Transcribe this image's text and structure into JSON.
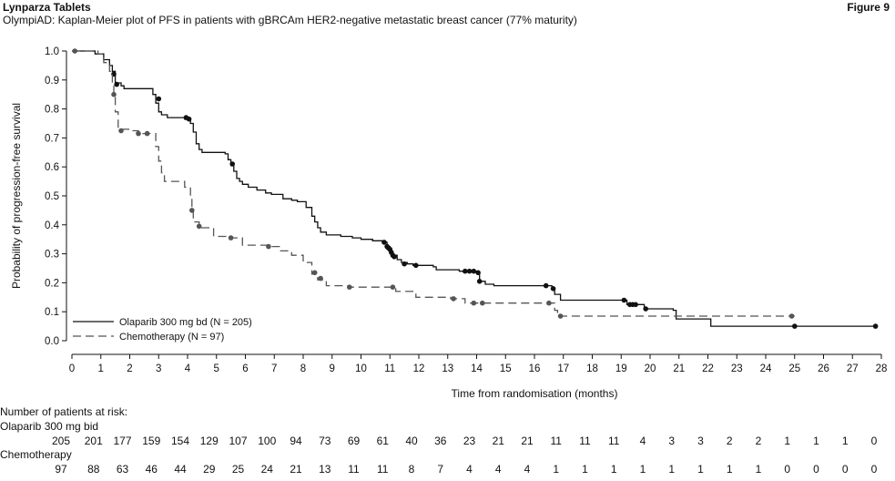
{
  "header": {
    "product": "Lynparza Tablets",
    "figure": "Figure 9",
    "subtitle": "OlympiAD: Kaplan-Meier plot of PFS in patients with gBRCAm HER2-negative metastatic breast cancer (77% maturity)"
  },
  "chart_data": {
    "type": "line",
    "title": "OlympiAD: Kaplan-Meier plot of PFS in patients with gBRCAm HER2-negative metastatic breast cancer (77% maturity)",
    "xlabel": "Time from randomisation (months)",
    "ylabel": "Probability of progression-free survival",
    "xlim": [
      0,
      28
    ],
    "ylim": [
      0,
      1
    ],
    "xticks": [
      0,
      1,
      2,
      3,
      4,
      5,
      6,
      7,
      8,
      9,
      10,
      11,
      12,
      13,
      14,
      15,
      16,
      17,
      18,
      19,
      20,
      21,
      22,
      23,
      24,
      25,
      26,
      27,
      28
    ],
    "yticks": [
      0.0,
      0.1,
      0.2,
      0.3,
      0.4,
      0.5,
      0.6,
      0.7,
      0.8,
      0.9,
      1.0
    ],
    "legend_position": "bottom-left",
    "series": [
      {
        "name": "Olaparib 300 mg bd (N = 205)",
        "style": "solid",
        "color": "#111111",
        "steps": [
          [
            0,
            1.0
          ],
          [
            0.5,
            1.0
          ],
          [
            0.8,
            0.99
          ],
          [
            1.0,
            0.99
          ],
          [
            1.1,
            0.97
          ],
          [
            1.3,
            0.95
          ],
          [
            1.4,
            0.93
          ],
          [
            1.5,
            0.89
          ],
          [
            1.7,
            0.88
          ],
          [
            1.8,
            0.87
          ],
          [
            2.7,
            0.87
          ],
          [
            2.8,
            0.85
          ],
          [
            2.9,
            0.82
          ],
          [
            3.0,
            0.79
          ],
          [
            3.1,
            0.78
          ],
          [
            3.3,
            0.77
          ],
          [
            3.8,
            0.77
          ],
          [
            3.9,
            0.765
          ],
          [
            4.1,
            0.75
          ],
          [
            4.2,
            0.72
          ],
          [
            4.3,
            0.68
          ],
          [
            4.4,
            0.66
          ],
          [
            4.5,
            0.65
          ],
          [
            5.0,
            0.65
          ],
          [
            5.3,
            0.645
          ],
          [
            5.4,
            0.625
          ],
          [
            5.5,
            0.605
          ],
          [
            5.6,
            0.585
          ],
          [
            5.7,
            0.56
          ],
          [
            5.8,
            0.55
          ],
          [
            5.9,
            0.54
          ],
          [
            6.1,
            0.53
          ],
          [
            6.4,
            0.52
          ],
          [
            6.7,
            0.51
          ],
          [
            6.9,
            0.505
          ],
          [
            7.3,
            0.49
          ],
          [
            7.6,
            0.485
          ],
          [
            7.8,
            0.48
          ],
          [
            8.1,
            0.46
          ],
          [
            8.3,
            0.43
          ],
          [
            8.4,
            0.41
          ],
          [
            8.5,
            0.39
          ],
          [
            8.6,
            0.375
          ],
          [
            8.8,
            0.365
          ],
          [
            9.3,
            0.36
          ],
          [
            9.7,
            0.355
          ],
          [
            10.0,
            0.35
          ],
          [
            10.4,
            0.345
          ],
          [
            10.8,
            0.34
          ],
          [
            10.9,
            0.325
          ],
          [
            11.0,
            0.32
          ],
          [
            11.05,
            0.305
          ],
          [
            11.1,
            0.295
          ],
          [
            11.25,
            0.28
          ],
          [
            11.4,
            0.27
          ],
          [
            11.6,
            0.265
          ],
          [
            11.8,
            0.26
          ],
          [
            12.5,
            0.255
          ],
          [
            12.6,
            0.245
          ],
          [
            13.4,
            0.24
          ],
          [
            14.0,
            0.235
          ],
          [
            14.1,
            0.205
          ],
          [
            14.3,
            0.195
          ],
          [
            14.6,
            0.19
          ],
          [
            16.4,
            0.19
          ],
          [
            16.6,
            0.18
          ],
          [
            16.7,
            0.16
          ],
          [
            16.9,
            0.14
          ],
          [
            19.1,
            0.14
          ],
          [
            19.2,
            0.125
          ],
          [
            19.8,
            0.11
          ],
          [
            20.8,
            0.105
          ],
          [
            20.9,
            0.075
          ],
          [
            22.0,
            0.075
          ],
          [
            22.1,
            0.05
          ],
          [
            25.0,
            0.05
          ],
          [
            27.8,
            0.05
          ]
        ],
        "censored": [
          [
            1.45,
            0.92
          ],
          [
            1.55,
            0.885
          ],
          [
            3.0,
            0.835
          ],
          [
            3.95,
            0.77
          ],
          [
            4.05,
            0.765
          ],
          [
            5.55,
            0.61
          ],
          [
            10.8,
            0.34
          ],
          [
            10.9,
            0.325
          ],
          [
            10.95,
            0.32
          ],
          [
            11.0,
            0.315
          ],
          [
            11.05,
            0.305
          ],
          [
            11.1,
            0.295
          ],
          [
            11.15,
            0.29
          ],
          [
            11.5,
            0.265
          ],
          [
            11.9,
            0.26
          ],
          [
            13.6,
            0.24
          ],
          [
            13.75,
            0.24
          ],
          [
            13.9,
            0.24
          ],
          [
            14.05,
            0.235
          ],
          [
            14.1,
            0.205
          ],
          [
            16.4,
            0.19
          ],
          [
            16.65,
            0.18
          ],
          [
            19.1,
            0.14
          ],
          [
            19.3,
            0.125
          ],
          [
            19.4,
            0.125
          ],
          [
            19.5,
            0.125
          ],
          [
            19.85,
            0.11
          ],
          [
            25.0,
            0.05
          ],
          [
            27.8,
            0.05
          ]
        ]
      },
      {
        "name": "Chemotherapy (N = 97)",
        "style": "dashed",
        "color": "#555555",
        "steps": [
          [
            0,
            1.0
          ],
          [
            0.9,
            0.99
          ],
          [
            1.1,
            0.96
          ],
          [
            1.3,
            0.93
          ],
          [
            1.4,
            0.88
          ],
          [
            1.45,
            0.85
          ],
          [
            1.5,
            0.79
          ],
          [
            1.6,
            0.73
          ],
          [
            2.0,
            0.725
          ],
          [
            2.3,
            0.715
          ],
          [
            2.8,
            0.715
          ],
          [
            2.9,
            0.67
          ],
          [
            3.0,
            0.62
          ],
          [
            3.1,
            0.58
          ],
          [
            3.2,
            0.55
          ],
          [
            3.9,
            0.53
          ],
          [
            4.1,
            0.5
          ],
          [
            4.15,
            0.45
          ],
          [
            4.2,
            0.41
          ],
          [
            4.4,
            0.39
          ],
          [
            4.9,
            0.36
          ],
          [
            5.5,
            0.355
          ],
          [
            5.9,
            0.33
          ],
          [
            6.8,
            0.325
          ],
          [
            7.2,
            0.31
          ],
          [
            7.6,
            0.295
          ],
          [
            8.0,
            0.27
          ],
          [
            8.3,
            0.23
          ],
          [
            8.5,
            0.21
          ],
          [
            8.8,
            0.19
          ],
          [
            9.6,
            0.185
          ],
          [
            11.1,
            0.185
          ],
          [
            11.2,
            0.17
          ],
          [
            11.9,
            0.15
          ],
          [
            13.1,
            0.145
          ],
          [
            13.6,
            0.13
          ],
          [
            16.6,
            0.13
          ],
          [
            16.7,
            0.105
          ],
          [
            16.8,
            0.085
          ],
          [
            25.0,
            0.085
          ]
        ],
        "censored": [
          [
            0.1,
            1.0
          ],
          [
            1.45,
            0.85
          ],
          [
            1.7,
            0.725
          ],
          [
            2.3,
            0.715
          ],
          [
            2.6,
            0.715
          ],
          [
            4.15,
            0.45
          ],
          [
            4.4,
            0.395
          ],
          [
            5.5,
            0.355
          ],
          [
            6.8,
            0.325
          ],
          [
            8.4,
            0.235
          ],
          [
            8.6,
            0.215
          ],
          [
            9.6,
            0.185
          ],
          [
            11.1,
            0.185
          ],
          [
            13.2,
            0.145
          ],
          [
            13.9,
            0.13
          ],
          [
            14.2,
            0.13
          ],
          [
            16.5,
            0.13
          ],
          [
            16.9,
            0.085
          ],
          [
            24.9,
            0.085
          ]
        ]
      }
    ]
  },
  "risk_table": {
    "title": "Number of patients at risk:",
    "rows": [
      {
        "label": "Olaparib 300 mg bid",
        "values": [
          "205",
          "201",
          "177",
          "159",
          "154",
          "129",
          "107",
          "100",
          "94",
          "73",
          "69",
          "61",
          "40",
          "36",
          "23",
          "21",
          "21",
          "11",
          "11",
          "11",
          "4",
          "3",
          "3",
          "2",
          "2",
          "1",
          "1",
          "1",
          "0"
        ]
      },
      {
        "label": "Chemotherapy",
        "values": [
          "97",
          "88",
          "63",
          "46",
          "44",
          "29",
          "25",
          "24",
          "21",
          "13",
          "11",
          "11",
          "8",
          "7",
          "4",
          "4",
          "4",
          "1",
          "1",
          "1",
          "1",
          "1",
          "1",
          "1",
          "1",
          "0",
          "0",
          "0",
          "0"
        ]
      }
    ]
  }
}
